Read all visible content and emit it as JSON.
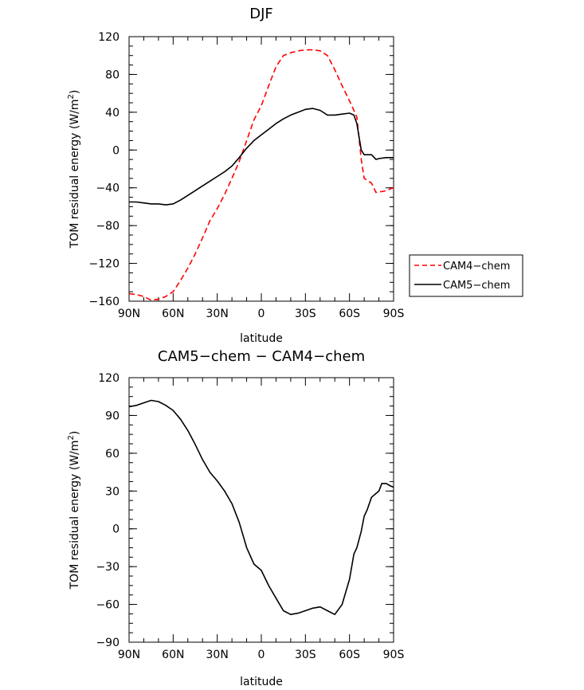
{
  "chart_data": [
    {
      "type": "line",
      "title": "DJF",
      "xlabel": "latitude",
      "ylabel": "TOM residual energy (W/m²)",
      "ylabel_main": "TOM residual energy (W/m",
      "ylabel_sup": "2",
      "ylabel_end": ")",
      "xlim": [
        90,
        -90
      ],
      "ylim": [
        -160,
        120
      ],
      "xticks": [
        90,
        60,
        30,
        0,
        -30,
        -60,
        -90
      ],
      "xtick_labels": [
        "90N",
        "60N",
        "30N",
        "0",
        "30S",
        "60S",
        "90S"
      ],
      "yticks": [
        -160,
        -120,
        -80,
        -40,
        0,
        40,
        80,
        120
      ],
      "ytick_labels": [
        "−160",
        "−120",
        "−80",
        "−40",
        "0",
        "40",
        "80",
        "120"
      ],
      "legend": {
        "position": "right",
        "entries": [
          "CAM4−chem",
          "CAM5−chem"
        ]
      },
      "series": [
        {
          "name": "CAM4−chem",
          "color": "#ff0000",
          "dash": "dashed",
          "x": [
            90,
            85,
            80,
            75,
            70,
            65,
            60,
            55,
            50,
            45,
            40,
            35,
            30,
            25,
            20,
            15,
            10,
            5,
            0,
            -5,
            -10,
            -15,
            -20,
            -25,
            -30,
            -35,
            -40,
            -45,
            -50,
            -55,
            -60,
            -65,
            -68,
            -70,
            -72,
            -75,
            -78,
            -80,
            -82,
            -85,
            -88,
            -90
          ],
          "y": [
            -152,
            -153,
            -155,
            -159,
            -158,
            -155,
            -150,
            -138,
            -125,
            -110,
            -93,
            -75,
            -62,
            -47,
            -30,
            -12,
            10,
            32,
            47,
            68,
            88,
            100,
            103,
            105,
            106,
            106,
            105,
            100,
            85,
            68,
            52,
            35,
            -10,
            -30,
            -32,
            -35,
            -45,
            -44,
            -44,
            -43,
            -41,
            -40
          ]
        },
        {
          "name": "CAM5−chem",
          "color": "#000000",
          "dash": "solid",
          "x": [
            90,
            85,
            80,
            75,
            70,
            65,
            60,
            55,
            50,
            45,
            40,
            35,
            30,
            25,
            20,
            15,
            10,
            5,
            0,
            -5,
            -10,
            -15,
            -20,
            -25,
            -30,
            -35,
            -40,
            -45,
            -50,
            -55,
            -60,
            -63,
            -65,
            -68,
            -70,
            -75,
            -78,
            -80,
            -85,
            -90
          ],
          "y": [
            -55,
            -55,
            -56,
            -57,
            -57,
            -58,
            -57,
            -53,
            -48,
            -43,
            -38,
            -33,
            -28,
            -23,
            -17,
            -8,
            2,
            10,
            16,
            22,
            28,
            33,
            37,
            40,
            43,
            44,
            42,
            37,
            37,
            38,
            39,
            37,
            28,
            0,
            -5,
            -5,
            -10,
            -9,
            -8,
            -8
          ]
        }
      ]
    },
    {
      "type": "line",
      "title": "CAM5−chem − CAM4−chem",
      "xlabel": "latitude",
      "ylabel": "TOM residual energy (W/m²)",
      "ylabel_main": "TOM residual energy (W/m",
      "ylabel_sup": "2",
      "ylabel_end": ")",
      "xlim": [
        90,
        -90
      ],
      "ylim": [
        -90,
        120
      ],
      "xticks": [
        90,
        60,
        30,
        0,
        -30,
        -60,
        -90
      ],
      "xtick_labels": [
        "90N",
        "60N",
        "30N",
        "0",
        "30S",
        "60S",
        "90S"
      ],
      "yticks": [
        -90,
        -60,
        -30,
        0,
        30,
        60,
        90,
        120
      ],
      "ytick_labels": [
        "−90",
        "−60",
        "−30",
        "0",
        "30",
        "60",
        "90",
        "120"
      ],
      "series": [
        {
          "name": "CAM5−chem − CAM4−chem",
          "color": "#000000",
          "dash": "solid",
          "x": [
            90,
            85,
            80,
            75,
            70,
            65,
            60,
            55,
            50,
            45,
            40,
            35,
            30,
            25,
            20,
            15,
            10,
            5,
            0,
            -5,
            -10,
            -15,
            -20,
            -25,
            -30,
            -35,
            -40,
            -45,
            -50,
            -55,
            -60,
            -63,
            -65,
            -68,
            -70,
            -72,
            -75,
            -78,
            -80,
            -82,
            -85,
            -88,
            -90
          ],
          "y": [
            97,
            98,
            100,
            102,
            101,
            98,
            94,
            87,
            78,
            67,
            55,
            45,
            38,
            30,
            20,
            5,
            -15,
            -28,
            -33,
            -45,
            -55,
            -65,
            -68,
            -67,
            -65,
            -63,
            -62,
            -65,
            -68,
            -60,
            -40,
            -20,
            -15,
            -2,
            10,
            15,
            25,
            28,
            30,
            36,
            36,
            34,
            33
          ]
        }
      ]
    }
  ]
}
